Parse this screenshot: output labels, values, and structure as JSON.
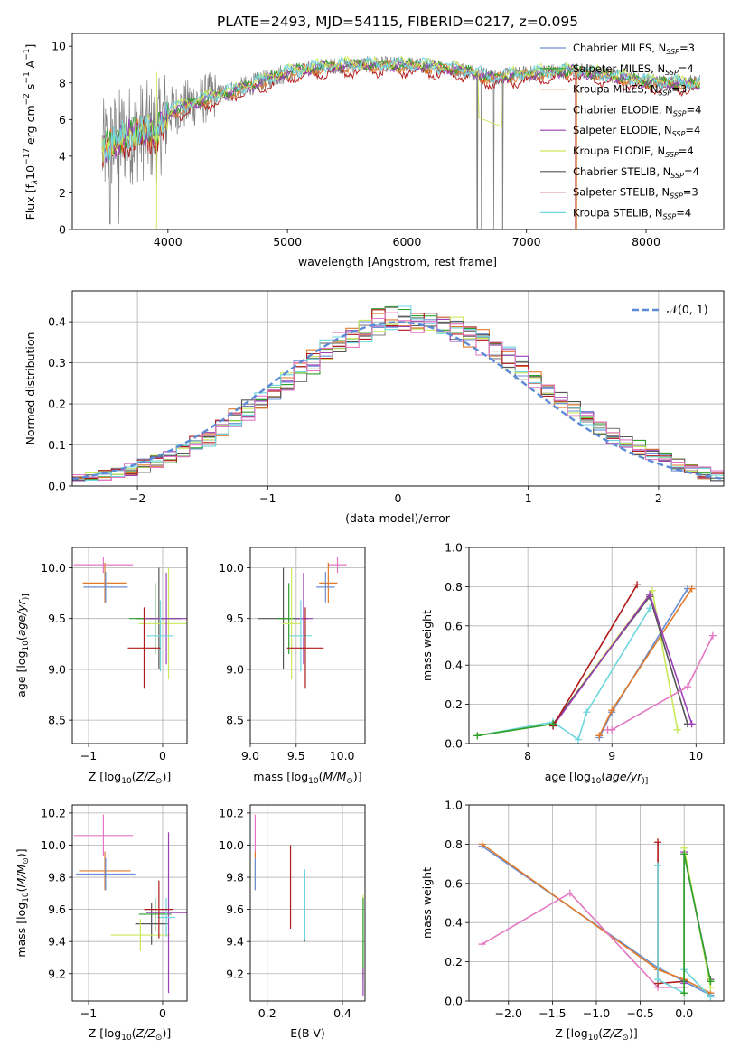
{
  "figure": {
    "title": "PLATE=2493, MJD=54115, FIBERID=0217, z=0.095"
  },
  "colors": {
    "chabrier_miles": "#6a8fd4",
    "salpeter_miles": "#2ca02c",
    "kroupa_miles": "#e07a2a",
    "chabrier_elodie": "#7f7f7f",
    "salpeter_elodie": "#9b3fb5",
    "kroupa_elodie": "#c9e85a",
    "chabrier_stelib": "#555555",
    "salpeter_stelib": "#b11a1a",
    "kroupa_stelib": "#6fd6de",
    "pink": "#e377c2",
    "gauss": "#5b8bd6"
  },
  "chart_data": [
    {
      "id": "spectrum",
      "type": "line",
      "title": "PLATE=2493, MJD=54115, FIBERID=0217, z=0.095",
      "xlabel": "wavelength [Angstrom, rest frame]",
      "ylabel_parts": [
        "Flux [f",
        "λ",
        "10",
        "−17",
        " erg cm",
        "−2",
        " s",
        "−1",
        " A",
        "−1",
        "]"
      ],
      "xlim": [
        3200,
        8650
      ],
      "ylim": [
        0,
        10.7
      ],
      "xticks": [
        4000,
        5000,
        6000,
        7000,
        8000
      ],
      "yticks": [
        0,
        2,
        4,
        6,
        8,
        10
      ],
      "grid": false,
      "legend": "top-right",
      "legend_entries": [
        {
          "pre": "Chabrier MILES, N",
          "sub": "SSP",
          "post": "=3",
          "color": "#6a8fd4"
        },
        {
          "pre": "Salpeter MILES, N",
          "sub": "SSP",
          "post": "=4",
          "color": "#2ca02c"
        },
        {
          "pre": "Kroupa MILES, N",
          "sub": "SSP",
          "post": "=3",
          "color": "#e07a2a"
        },
        {
          "pre": "Chabrier ELODIE, N",
          "sub": "SSP",
          "post": "=4",
          "color": "#7f7f7f"
        },
        {
          "pre": "Salpeter ELODIE, N",
          "sub": "SSP",
          "post": "=4",
          "color": "#9b3fb5"
        },
        {
          "pre": "Kroupa ELODIE, N",
          "sub": "SSP",
          "post": "=4",
          "color": "#c9e85a"
        },
        {
          "pre": "Chabrier STELIB, N",
          "sub": "SSP",
          "post": "=4",
          "color": "#555555"
        },
        {
          "pre": "Salpeter STELIB, N",
          "sub": "SSP",
          "post": "=3",
          "color": "#b11a1a"
        },
        {
          "pre": "Kroupa STELIB, N",
          "sub": "SSP",
          "post": "=4",
          "color": "#6fd6de"
        }
      ],
      "continuum": [
        [
          3450,
          4.3
        ],
        [
          3600,
          5.0
        ],
        [
          3800,
          5.4
        ],
        [
          3900,
          5.2
        ],
        [
          4000,
          6.4
        ],
        [
          4200,
          6.9
        ],
        [
          4400,
          7.3
        ],
        [
          4700,
          7.9
        ],
        [
          5000,
          8.6
        ],
        [
          5300,
          8.9
        ],
        [
          5600,
          9.0
        ],
        [
          6000,
          9.0
        ],
        [
          6400,
          8.8
        ],
        [
          6560,
          8.6
        ],
        [
          6700,
          8.3
        ],
        [
          7000,
          8.5
        ],
        [
          7400,
          8.7
        ],
        [
          7700,
          8.4
        ],
        [
          8000,
          8.1
        ],
        [
          8300,
          8.0
        ],
        [
          8450,
          8.0
        ]
      ]
    },
    {
      "id": "residuals",
      "type": "step",
      "xlabel": "(data-model)/error",
      "ylabel": "Normed distribution",
      "xlim": [
        -2.5,
        2.5
      ],
      "ylim": [
        0,
        0.475
      ],
      "xticks": [
        -2,
        -1,
        0,
        1,
        2
      ],
      "xtick_labels": [
        "−2",
        "−1",
        "0",
        "1",
        "2"
      ],
      "yticks": [
        0,
        0.1,
        0.2,
        0.3,
        0.4
      ],
      "ytick_labels": [
        "0.0",
        "0.1",
        "0.2",
        "0.3",
        "0.4"
      ],
      "grid": true,
      "legend": "top-right",
      "gauss_label": "𝒩(0, 1)",
      "bin_width": 0.1
    },
    {
      "id": "age_vs_Z",
      "type": "errorbar",
      "xlabel_parts": [
        "Z [log",
        "10",
        "(",
        "Z/Z",
        "⊙",
        ")]"
      ],
      "ylabel_parts": [
        "age  [log",
        "10",
        "(",
        "age/yr",
        ")]"
      ],
      "xlim": [
        -1.22,
        0.33
      ],
      "ylim": [
        8.27,
        10.2
      ],
      "xticks": [
        -1,
        0
      ],
      "xtick_labels": [
        "−1",
        "0"
      ],
      "yticks": [
        8.5,
        9.0,
        9.5,
        10.0
      ],
      "ytick_labels": [
        "8.5",
        "9.0",
        "9.5",
        "10.0"
      ],
      "points": [
        {
          "x": -0.8,
          "y": 10.03,
          "xerr": 0.4,
          "yerr": 0.08,
          "color": "#e377c2"
        },
        {
          "x": -0.78,
          "y": 9.85,
          "xerr": 0.3,
          "yerr": 0.2,
          "color": "#e07a2a"
        },
        {
          "x": -0.77,
          "y": 9.81,
          "xerr": 0.3,
          "yerr": 0.15,
          "color": "#6a8fd4"
        },
        {
          "x": -0.05,
          "y": 9.5,
          "xerr": 0.3,
          "yerr": 0.5,
          "color": "#555555"
        },
        {
          "x": -0.1,
          "y": 9.5,
          "xerr": 0.35,
          "yerr": 0.35,
          "color": "#2ca02c"
        },
        {
          "x": 0.08,
          "y": 9.45,
          "xerr": 0.4,
          "yerr": 0.55,
          "color": "#c9e85a"
        },
        {
          "x": 0.05,
          "y": 9.5,
          "xerr": 0.3,
          "yerr": 0.45,
          "color": "#9b3fb5"
        },
        {
          "x": -0.03,
          "y": 9.33,
          "xerr": 0.18,
          "yerr": 0.35,
          "color": "#6fd6de"
        },
        {
          "x": -0.25,
          "y": 9.21,
          "xerr": 0.22,
          "yerr": 0.4,
          "color": "#b11a1a"
        }
      ]
    },
    {
      "id": "age_vs_mass",
      "type": "errorbar",
      "xlabel_parts": [
        "mass [log",
        "10",
        "(",
        "M/M",
        "⊙",
        ")]"
      ],
      "ylabel_parts": [],
      "xlim": [
        9.0,
        10.25
      ],
      "ylim": [
        8.27,
        10.2
      ],
      "xticks": [
        9.0,
        9.5,
        10.0
      ],
      "xtick_labels": [
        "9.0",
        "9.5",
        "10.0"
      ],
      "yticks": [
        8.5,
        9.0,
        9.5,
        10.0
      ],
      "ytick_labels": [
        "8.5",
        "9.0",
        "9.5",
        "10.0"
      ],
      "points": [
        {
          "x": 9.95,
          "y": 10.03,
          "xerr": 0.1,
          "yerr": 0.08,
          "color": "#e377c2"
        },
        {
          "x": 9.85,
          "y": 9.85,
          "xerr": 0.1,
          "yerr": 0.2,
          "color": "#e07a2a"
        },
        {
          "x": 9.82,
          "y": 9.81,
          "xerr": 0.1,
          "yerr": 0.15,
          "color": "#6a8fd4"
        },
        {
          "x": 9.36,
          "y": 9.5,
          "xerr": 0.27,
          "yerr": 0.5,
          "color": "#555555"
        },
        {
          "x": 9.42,
          "y": 9.5,
          "xerr": 0.12,
          "yerr": 0.35,
          "color": "#2ca02c"
        },
        {
          "x": 9.45,
          "y": 9.45,
          "xerr": 0.1,
          "yerr": 0.55,
          "color": "#c9e85a"
        },
        {
          "x": 9.58,
          "y": 9.5,
          "xerr": 0.1,
          "yerr": 0.45,
          "color": "#9b3fb5"
        },
        {
          "x": 9.55,
          "y": 9.33,
          "xerr": 0.12,
          "yerr": 0.35,
          "color": "#6fd6de"
        },
        {
          "x": 9.6,
          "y": 9.21,
          "xerr": 0.2,
          "yerr": 0.4,
          "color": "#b11a1a"
        }
      ]
    },
    {
      "id": "weight_vs_age",
      "type": "line",
      "xlabel_parts": [
        "age  [log",
        "10",
        "(",
        "age/yr",
        ")]"
      ],
      "ylabel": "mass weight",
      "xlim": [
        7.3,
        10.33
      ],
      "ylim": [
        0,
        1.0
      ],
      "xticks": [
        8,
        9,
        10
      ],
      "xtick_labels": [
        "8",
        "9",
        "10"
      ],
      "yticks": [
        0,
        0.2,
        0.4,
        0.6,
        0.8,
        1.0
      ],
      "ytick_labels": [
        "0.0",
        "0.2",
        "0.4",
        "0.6",
        "0.8",
        "1.0"
      ],
      "series": [
        {
          "color": "#6fd6de",
          "x": [
            7.4,
            8.3,
            8.6,
            8.7,
            9.45
          ],
          "y": [
            0.04,
            0.11,
            0.02,
            0.16,
            0.69
          ]
        },
        {
          "color": "#6a8fd4",
          "x": [
            8.85,
            9.0,
            9.9
          ],
          "y": [
            0.03,
            0.16,
            0.79
          ]
        },
        {
          "color": "#e07a2a",
          "x": [
            8.85,
            9.0,
            9.95
          ],
          "y": [
            0.04,
            0.17,
            0.79
          ]
        },
        {
          "color": "#c9e85a",
          "x": [
            7.4,
            8.3,
            9.48,
            9.78
          ],
          "y": [
            0.04,
            0.1,
            0.78,
            0.07
          ]
        },
        {
          "color": "#555555",
          "x": [
            8.3,
            9.45,
            9.9
          ],
          "y": [
            0.1,
            0.75,
            0.1
          ]
        },
        {
          "color": "#9b3fb5",
          "x": [
            8.3,
            9.45,
            9.95
          ],
          "y": [
            0.09,
            0.76,
            0.1
          ]
        },
        {
          "color": "#b11a1a",
          "x": [
            8.3,
            9.3
          ],
          "y": [
            0.09,
            0.81
          ]
        },
        {
          "color": "#e377c2",
          "x": [
            8.95,
            9.0,
            9.9,
            10.2
          ],
          "y": [
            0.07,
            0.07,
            0.29,
            0.55
          ]
        },
        {
          "color": "#2ca02c",
          "x": [
            7.4,
            8.3
          ],
          "y": [
            0.04,
            0.1
          ]
        }
      ]
    },
    {
      "id": "mass_vs_Z",
      "type": "errorbar",
      "xlabel_parts": [
        "Z [log",
        "10",
        "(",
        "Z/Z",
        "⊙",
        ")]"
      ],
      "ylabel_parts": [
        "mass [log",
        "10",
        "(",
        "M/M",
        "⊙",
        ")]"
      ],
      "xlim": [
        -1.22,
        0.33
      ],
      "ylim": [
        9.03,
        10.25
      ],
      "xticks": [
        -1,
        0
      ],
      "xtick_labels": [
        "−1",
        "0"
      ],
      "yticks": [
        9.2,
        9.4,
        9.6,
        9.8,
        10.0,
        10.2
      ],
      "ytick_labels": [
        "9.2",
        "9.4",
        "9.6",
        "9.8",
        "10.0",
        "10.2"
      ],
      "points": [
        {
          "x": -0.8,
          "y": 10.06,
          "xerr": 0.4,
          "yerr": 0.13,
          "color": "#e377c2"
        },
        {
          "x": -0.78,
          "y": 9.84,
          "xerr": 0.35,
          "yerr": 0.12,
          "color": "#e07a2a"
        },
        {
          "x": -0.77,
          "y": 9.82,
          "xerr": 0.4,
          "yerr": 0.1,
          "color": "#6a8fd4"
        },
        {
          "x": -0.15,
          "y": 9.51,
          "xerr": 0.22,
          "yerr": 0.13,
          "color": "#555555"
        },
        {
          "x": -0.1,
          "y": 9.57,
          "xerr": 0.22,
          "yerr": 0.1,
          "color": "#2ca02c"
        },
        {
          "x": -0.3,
          "y": 9.44,
          "xerr": 0.4,
          "yerr": 0.1,
          "color": "#c9e85a"
        },
        {
          "x": 0.08,
          "y": 9.58,
          "xerr": 0.3,
          "yerr": 0.5,
          "color": "#9b3fb5"
        },
        {
          "x": 0.05,
          "y": 9.55,
          "xerr": 0.12,
          "yerr": 0.12,
          "color": "#6fd6de"
        },
        {
          "x": -0.05,
          "y": 9.6,
          "xerr": 0.2,
          "yerr": 0.18,
          "color": "#b11a1a"
        }
      ]
    },
    {
      "id": "mass_vs_ebv",
      "type": "errorbar",
      "xlabel": "E(B-V)",
      "ylabel_parts": [],
      "xlim": [
        0.155,
        0.46
      ],
      "ylim": [
        9.03,
        10.25
      ],
      "xticks": [
        0.2,
        0.4
      ],
      "xtick_labels": [
        "0.2",
        "0.4"
      ],
      "yticks": [
        9.2,
        9.4,
        9.6,
        9.8,
        10.0,
        10.2
      ],
      "ytick_labels": [
        "9.2",
        "9.4",
        "9.6",
        "9.8",
        "10.0",
        "10.2"
      ],
      "points": [
        {
          "x": 0.168,
          "y": 10.06,
          "xerr": 0.0,
          "yerr": 0.13,
          "color": "#e377c2"
        },
        {
          "x": 0.168,
          "y": 9.84,
          "xerr": 0.0,
          "yerr": 0.12,
          "color": "#e07a2a"
        },
        {
          "x": 0.168,
          "y": 9.82,
          "xerr": 0.0,
          "yerr": 0.1,
          "color": "#6a8fd4"
        },
        {
          "x": 0.262,
          "y": 9.74,
          "xerr": 0.0,
          "yerr": 0.26,
          "color": "#b11a1a"
        },
        {
          "x": 0.3,
          "y": 9.62,
          "xerr": 0.0,
          "yerr": 0.22,
          "color": "#555555"
        },
        {
          "x": 0.3,
          "y": 9.63,
          "xerr": 0.0,
          "yerr": 0.22,
          "color": "#6fd6de"
        },
        {
          "x": 0.455,
          "y": 9.44,
          "xerr": 0.0,
          "yerr": 0.25,
          "color": "#c9e85a"
        },
        {
          "x": 0.455,
          "y": 9.42,
          "xerr": 0.0,
          "yerr": 0.25,
          "color": "#2ca02c"
        },
        {
          "x": 0.455,
          "y": 9.15,
          "xerr": 0.0,
          "yerr": 0.09,
          "color": "#9b3fb5"
        }
      ]
    },
    {
      "id": "weight_vs_Z",
      "type": "line",
      "xlabel_parts": [
        "Z [log",
        "10",
        "(",
        "Z/Z",
        "⊙",
        ")]"
      ],
      "ylabel": "mass weight",
      "xlim": [
        -2.45,
        0.45
      ],
      "ylim": [
        0,
        1.0
      ],
      "xticks": [
        -2.0,
        -1.5,
        -1.0,
        -0.5,
        0.0
      ],
      "xtick_labels": [
        "−2.0",
        "−1.5",
        "−1.0",
        "−0.5",
        "0.0"
      ],
      "yticks": [
        0,
        0.2,
        0.4,
        0.6,
        0.8,
        1.0
      ],
      "ytick_labels": [
        "0.0",
        "0.2",
        "0.4",
        "0.6",
        "0.8",
        "1.0"
      ],
      "series": [
        {
          "color": "#6a8fd4",
          "x": [
            -2.3,
            -0.3,
            0.0,
            0.3
          ],
          "y": [
            0.79,
            0.17,
            0.1,
            0.03
          ]
        },
        {
          "color": "#e07a2a",
          "x": [
            -2.3,
            -0.3,
            0.0,
            0.3
          ],
          "y": [
            0.8,
            0.16,
            0.11,
            0.04
          ]
        },
        {
          "color": "#e377c2",
          "x": [
            -2.3,
            -1.3,
            -0.3,
            0.0
          ],
          "y": [
            0.29,
            0.55,
            0.07,
            0.07
          ]
        },
        {
          "color": "#b11a1a",
          "x": [
            -0.3,
            -0.3,
            0.0
          ],
          "y": [
            0.81,
            0.09,
            0.1
          ]
        },
        {
          "color": "#6fd6de",
          "x": [
            -0.3,
            -0.3,
            0.0,
            0.0,
            0.3
          ],
          "y": [
            0.69,
            0.11,
            0.04,
            0.16,
            0.02
          ]
        },
        {
          "color": "#555555",
          "x": [
            0.0,
            0.0,
            0.3,
            0.3
          ],
          "y": [
            0.1,
            0.75,
            0.1,
            0.11
          ]
        },
        {
          "color": "#9b3fb5",
          "x": [
            0.0,
            0.0,
            0.3
          ],
          "y": [
            0.09,
            0.76,
            0.1
          ]
        },
        {
          "color": "#c9e85a",
          "x": [
            0.0,
            0.0,
            0.3,
            0.3
          ],
          "y": [
            0.04,
            0.78,
            0.07,
            0.1
          ]
        },
        {
          "color": "#2ca02c",
          "x": [
            0.0,
            0.0,
            0.3
          ],
          "y": [
            0.04,
            0.75,
            0.1
          ]
        }
      ]
    }
  ]
}
